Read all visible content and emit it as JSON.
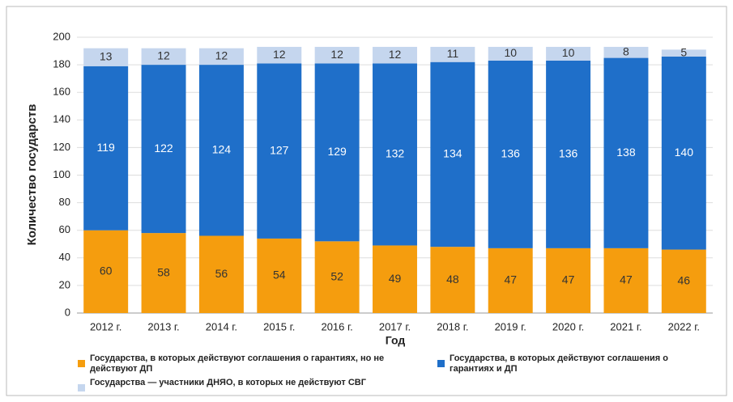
{
  "chart_data": {
    "type": "stacked_bar",
    "ylabel": "Количество государств",
    "xlabel": "Год",
    "categories": [
      "2012 г.",
      "2013 г.",
      "2014 г.",
      "2015 г.",
      "2016 г.",
      "2017 г.",
      "2018 г.",
      "2019 г.",
      "2020 г.",
      "2021 г.",
      "2022 г."
    ],
    "series": [
      {
        "name": "Государства, в которых действуют соглашения о гарантиях, но не действуют ДП",
        "color": "#f59d0e",
        "values": [
          60,
          58,
          56,
          54,
          52,
          49,
          48,
          47,
          47,
          47,
          46
        ]
      },
      {
        "name": "Государства, в которых действуют соглашения о гарантиях и ДП",
        "color": "#1f6fc9",
        "values": [
          119,
          122,
          124,
          127,
          129,
          132,
          134,
          136,
          136,
          138,
          140
        ]
      },
      {
        "name": "Государства — участники ДНЯО, в которых не действуют СВГ",
        "color": "#c5d6ee",
        "values": [
          13,
          12,
          12,
          12,
          12,
          12,
          11,
          10,
          10,
          8,
          5
        ]
      }
    ],
    "ylim": [
      0,
      200
    ],
    "yticks": [
      0,
      20,
      40,
      60,
      80,
      100,
      120,
      140,
      160,
      180,
      200
    ],
    "grid": true
  }
}
